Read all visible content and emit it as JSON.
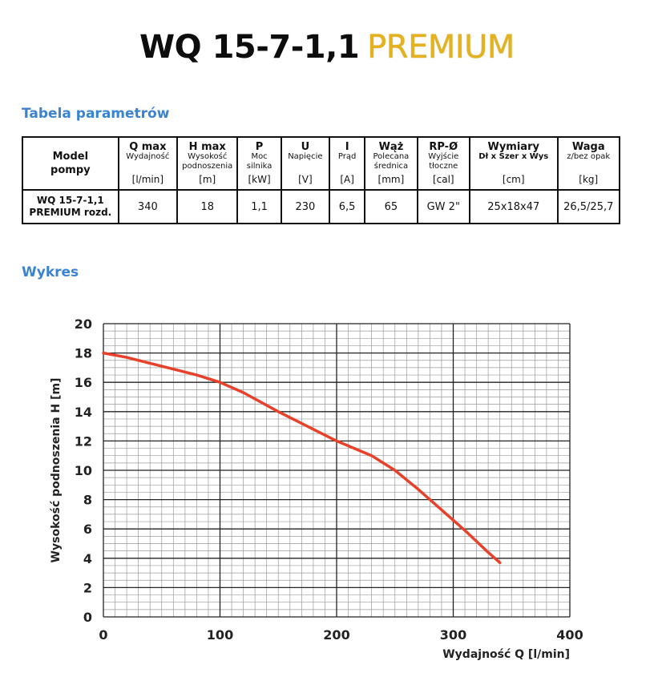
{
  "header": {
    "model": "WQ 15-7-1,1",
    "premium": "PREMIUM"
  },
  "sections": {
    "params_title": "Tabela parametrów",
    "chart_title": "Wykres"
  },
  "table": {
    "model_header": [
      "Model",
      "pompy"
    ],
    "columns": [
      {
        "symbol": "Q max",
        "desc": [
          "Wydajność"
        ],
        "unit": "[l/min]"
      },
      {
        "symbol": "H max",
        "desc": [
          "Wysokość",
          "podnoszenia"
        ],
        "unit": "[m]"
      },
      {
        "symbol": "P",
        "desc": [
          "Moc",
          "silnika"
        ],
        "unit": "[kW]"
      },
      {
        "symbol": "U",
        "desc": [
          "Napięcie"
        ],
        "unit": "[V]"
      },
      {
        "symbol": "I",
        "desc": [
          "Prąd"
        ],
        "unit": "[A]"
      },
      {
        "symbol": "Wąż",
        "desc": [
          "Polecana",
          "średnica"
        ],
        "unit": "[mm]"
      },
      {
        "symbol": "RP-Ø",
        "desc": [
          "Wyjście",
          "tłoczne"
        ],
        "unit": "[cal]"
      },
      {
        "symbol": "Wymiary",
        "desc": [
          "Dł x Szer x Wys"
        ],
        "unit": "[cm]"
      },
      {
        "symbol": "Waga",
        "desc": [
          "z/bez opak"
        ],
        "unit": "[kg]"
      }
    ],
    "row": {
      "model": [
        "WQ 15-7-1,1",
        "PREMIUM rozd."
      ],
      "values": [
        "340",
        "18",
        "1,1",
        "230",
        "6,5",
        "65",
        "GW 2\"",
        "25x18x47",
        "26,5/25,7"
      ]
    }
  },
  "colors": {
    "accent_blue": "#3a83d2",
    "premium_gold": "#e3b21e",
    "curve": "#e8402a",
    "grid_major": "#222222",
    "grid_minor": "#9a9a9a"
  },
  "chart_data": {
    "type": "line",
    "xlabel": "Wydajność Q [l/min]",
    "ylabel": "Wysokość podnoszenia H [m]",
    "xlim": [
      0,
      400
    ],
    "ylim": [
      0,
      20
    ],
    "x_ticks": [
      "0",
      "100",
      "200",
      "300",
      "400"
    ],
    "y_ticks": [
      "0",
      "2",
      "4",
      "6",
      "8",
      "10",
      "12",
      "14",
      "16",
      "18",
      "20"
    ],
    "grid": true,
    "series": [
      {
        "x": [
          0,
          20,
          40,
          60,
          80,
          100,
          120,
          150,
          180,
          200,
          230,
          250,
          270,
          290,
          310,
          330,
          340
        ],
        "y": [
          18,
          17.7,
          17.3,
          16.9,
          16.5,
          16,
          15.3,
          14,
          12.8,
          12,
          11,
          10,
          8.7,
          7.3,
          5.9,
          4.4,
          3.7
        ]
      }
    ]
  }
}
